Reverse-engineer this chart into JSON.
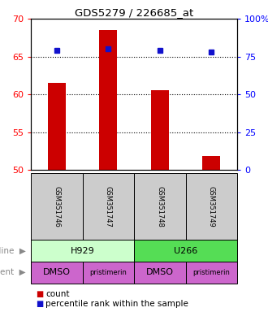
{
  "title": "GDS5279 / 226685_at",
  "samples": [
    "GSM351746",
    "GSM351747",
    "GSM351748",
    "GSM351749"
  ],
  "bar_values": [
    61.5,
    68.5,
    60.5,
    51.8
  ],
  "percentile_values": [
    79,
    80,
    79,
    78
  ],
  "bar_color": "#cc0000",
  "dot_color": "#1111cc",
  "ylim_left": [
    50,
    70
  ],
  "ylim_right": [
    0,
    100
  ],
  "yticks_left": [
    50,
    55,
    60,
    65,
    70
  ],
  "yticks_right": [
    0,
    25,
    50,
    75,
    100
  ],
  "yticklabels_right": [
    "0",
    "25",
    "50",
    "75",
    "100%"
  ],
  "dotted_lines": [
    55,
    60,
    65
  ],
  "cell_line_labels": [
    "H929",
    "U266"
  ],
  "cell_line_colors": [
    "#ccffcc",
    "#55dd55"
  ],
  "agent_labels": [
    "DMSO",
    "pristimerin",
    "DMSO",
    "pristimerin"
  ],
  "agent_color": "#cc66cc",
  "sample_bg_color": "#cccccc",
  "legend_count_color": "#cc0000",
  "legend_percentile_color": "#1111cc",
  "left_label_color": "#888888"
}
